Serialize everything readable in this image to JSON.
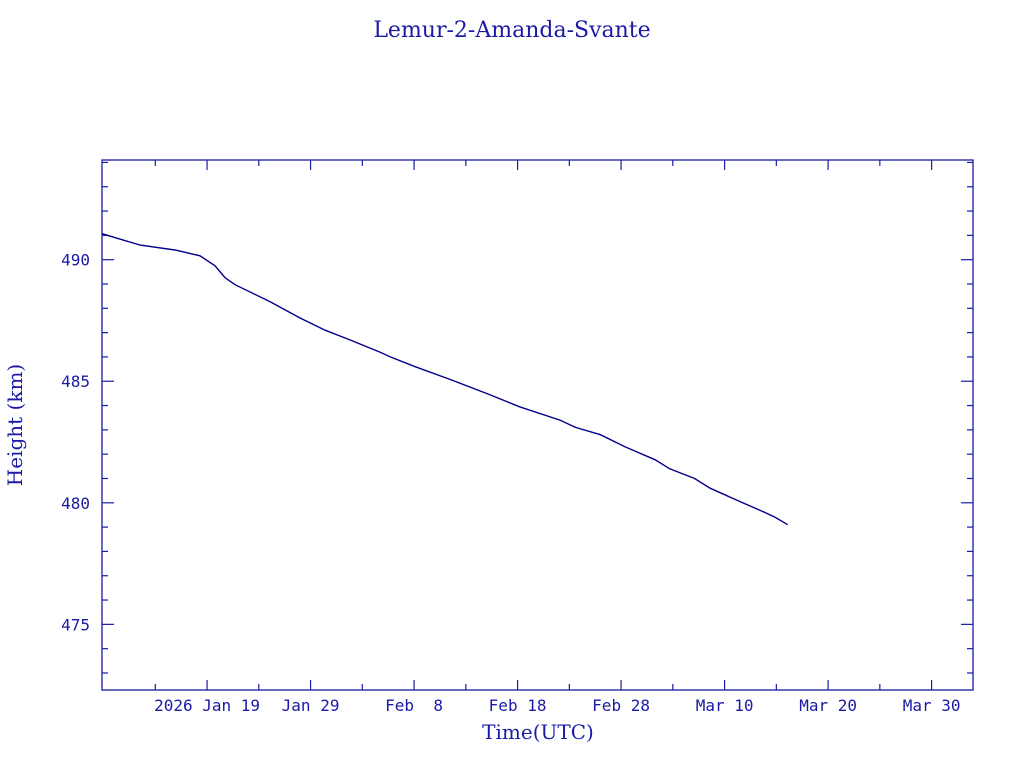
{
  "chart_data": {
    "type": "line",
    "title": "Lemur-2-Amanda-Svante",
    "xlabel": "Time(UTC)",
    "ylabel": "Height (km)",
    "x_unit": "days since 2026 Jan 19",
    "xlim": [
      -10.15,
      74.0
    ],
    "ylim": [
      472.3,
      494.1
    ],
    "grid": false,
    "x_ticks": [
      {
        "value": 0,
        "label": "2026 Jan 19"
      },
      {
        "value": 10,
        "label": "Jan 29"
      },
      {
        "value": 20,
        "label": "Feb  8"
      },
      {
        "value": 30,
        "label": "Feb 18"
      },
      {
        "value": 40,
        "label": "Feb 28"
      },
      {
        "value": 50,
        "label": "Mar 10"
      },
      {
        "value": 60,
        "label": "Mar 20"
      },
      {
        "value": 70,
        "label": "Mar 30"
      }
    ],
    "y_ticks": [
      {
        "value": 475,
        "label": "475"
      },
      {
        "value": 480,
        "label": "480"
      },
      {
        "value": 485,
        "label": "485"
      },
      {
        "value": 490,
        "label": "490"
      }
    ],
    "series": [
      {
        "name": "Height",
        "color": "#00008b",
        "x": [
          -10.15,
          -6.47,
          -3.1,
          -0.68,
          0.77,
          1.74,
          2.7,
          6.09,
          8.99,
          11.4,
          13.8,
          16.7,
          17.7,
          20.1,
          23.5,
          27.3,
          30.2,
          34.1,
          35.6,
          38.0,
          40.4,
          43.3,
          44.7,
          47.1,
          48.6,
          51.5,
          53.9,
          54.9,
          56.1
        ],
        "y": [
          491.07,
          490.6,
          490.4,
          490.16,
          489.75,
          489.26,
          488.97,
          488.27,
          487.6,
          487.1,
          486.7,
          486.2,
          486.0,
          485.6,
          485.07,
          484.45,
          483.95,
          483.4,
          483.1,
          482.8,
          482.3,
          481.77,
          481.4,
          481.0,
          480.6,
          480.05,
          479.6,
          479.4,
          479.1
        ]
      }
    ]
  }
}
